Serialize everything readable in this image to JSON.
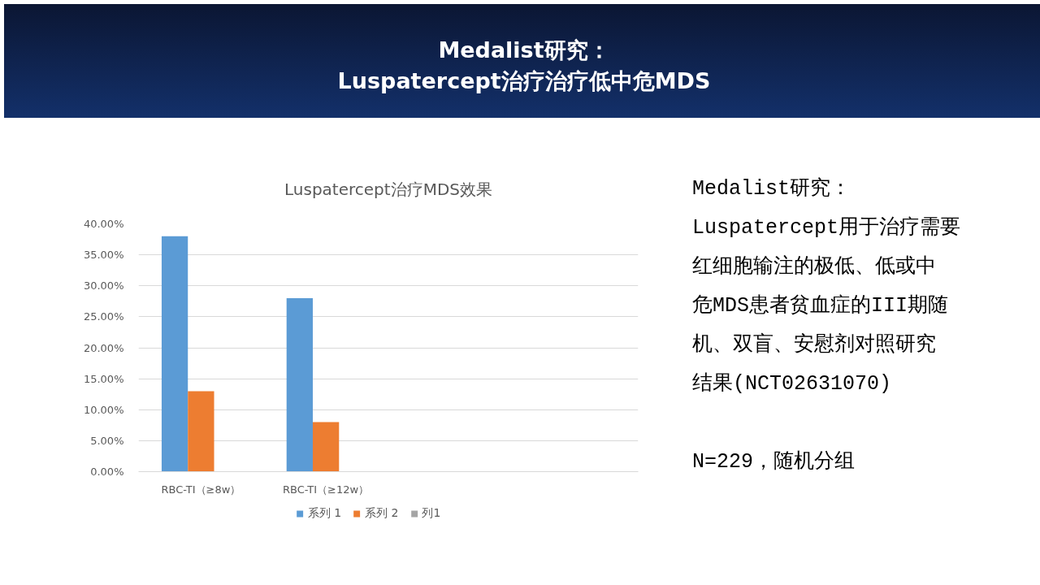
{
  "chart_data": {
    "type": "bar",
    "title": "Luspatercept治疗MDS效果",
    "categories": [
      "RBC-TI（≥8w）",
      "RBC-TI（≥12w）",
      null,
      null
    ],
    "series": [
      {
        "name": "系列 1",
        "color": "#5b9bd5",
        "values": [
          38,
          28,
          null,
          null
        ]
      },
      {
        "name": "系列 2",
        "color": "#ed7d31",
        "values": [
          13,
          8,
          null,
          null
        ]
      },
      {
        "name": "列1",
        "color": "#a5a5a5",
        "values": [
          null,
          null,
          null,
          null
        ]
      }
    ],
    "ylim": [
      0,
      40
    ],
    "yticks": [
      {
        "value": 0,
        "label": "0.00%"
      },
      {
        "value": 5,
        "label": "5.00%"
      },
      {
        "value": 10,
        "label": "10.00%"
      },
      {
        "value": 15,
        "label": "15.00%"
      },
      {
        "value": 20,
        "label": "20.00%"
      },
      {
        "value": 25,
        "label": "25.00%"
      },
      {
        "value": 30,
        "label": "30.00%"
      },
      {
        "value": 35,
        "label": "35.00%"
      },
      {
        "value": 40,
        "label": "40.00%"
      }
    ],
    "grid": "y",
    "legend": "bottom",
    "annotations": [
      "Medalist研究：",
      "Luspatercept治疗治疗低中危MDS",
      "Medalist研究：",
      "Luspatercept用于治疗需要红细胞输注的极低、低或中危MDS患者贫血症的III期随机、双盲、安慰剂对照研究结果(NCT02631070)",
      "N=229，随机分组"
    ]
  }
}
